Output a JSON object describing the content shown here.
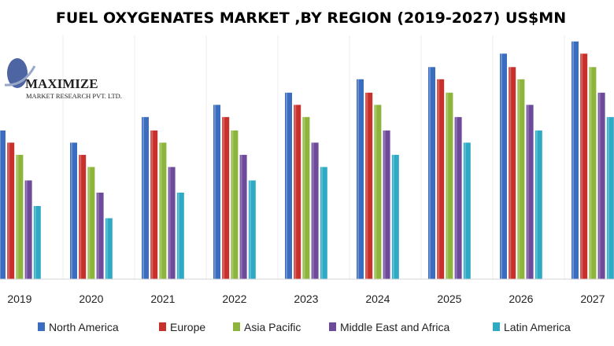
{
  "chart_data": {
    "type": "bar",
    "title": "FUEL OXYGENATES MARKET ,BY REGION (2019-2027) US$MN",
    "xlabel": "",
    "ylabel": "",
    "categories": [
      "2019",
      "2020",
      "2021",
      "2022",
      "2023",
      "2024",
      "2025",
      "2026",
      "2027"
    ],
    "ylim": [
      0,
      200
    ],
    "grid": true,
    "legend_position": "bottom",
    "series": [
      {
        "name": "North America",
        "color": "#3a6cc0",
        "values": [
          122,
          112,
          133,
          143,
          153,
          164,
          174,
          185,
          195
        ]
      },
      {
        "name": "Europe",
        "color": "#c8302c",
        "values": [
          112,
          102,
          122,
          133,
          143,
          153,
          164,
          174,
          185
        ]
      },
      {
        "name": "Asia Pacific",
        "color": "#8db53c",
        "values": [
          102,
          92,
          112,
          122,
          133,
          143,
          153,
          164,
          174
        ]
      },
      {
        "name": "Middle East and Africa",
        "color": "#6e4a9b",
        "values": [
          81,
          71,
          92,
          102,
          112,
          122,
          133,
          143,
          153
        ]
      },
      {
        "name": "Latin America",
        "color": "#2eaac5",
        "values": [
          60,
          50,
          71,
          81,
          92,
          102,
          112,
          122,
          133
        ]
      }
    ]
  },
  "logo": {
    "name": "MAXIMIZE",
    "subtitle": "MARKET RESEARCH PVT. LTD."
  }
}
